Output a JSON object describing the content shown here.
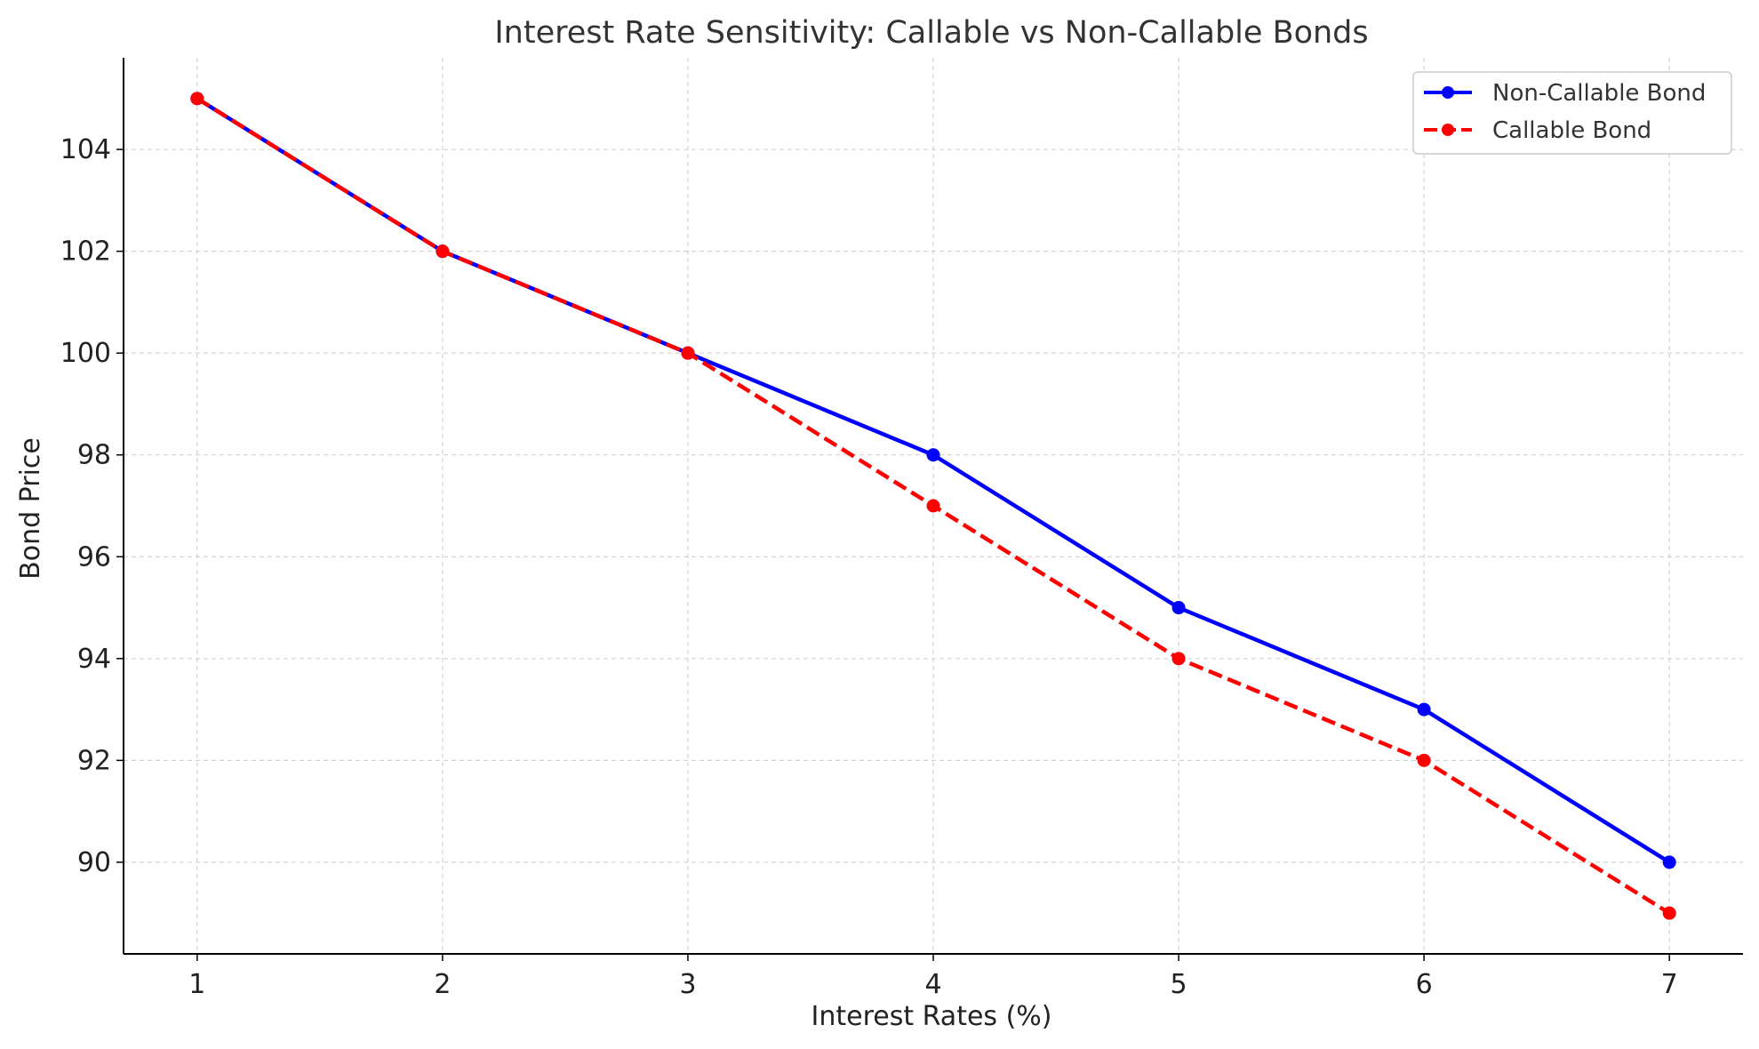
{
  "chart_data": {
    "type": "line",
    "title": "Interest Rate Sensitivity: Callable vs Non-Callable Bonds",
    "xlabel": "Interest Rates (%)",
    "ylabel": "Bond Price",
    "x": [
      1,
      2,
      3,
      4,
      5,
      6,
      7
    ],
    "x_ticks": [
      1,
      2,
      3,
      4,
      5,
      6,
      7
    ],
    "y_ticks": [
      90,
      92,
      94,
      96,
      98,
      100,
      102,
      104
    ],
    "xlim": [
      0.7,
      7.3
    ],
    "ylim": [
      88.2,
      105.8
    ],
    "grid": true,
    "legend_position": "top-right",
    "series": [
      {
        "name": "Non-Callable Bond",
        "values": [
          105,
          102,
          100,
          98,
          95,
          93,
          90
        ],
        "color": "#0000ff",
        "line_style": "solid",
        "marker": "circle"
      },
      {
        "name": "Callable Bond",
        "values": [
          105,
          102,
          100,
          97,
          94,
          92,
          89
        ],
        "color": "#ff0000",
        "line_style": "dashed",
        "marker": "circle"
      }
    ]
  },
  "colors": {
    "grid": "#cccccc",
    "axis": "#000000",
    "legend_border": "#cccccc"
  }
}
